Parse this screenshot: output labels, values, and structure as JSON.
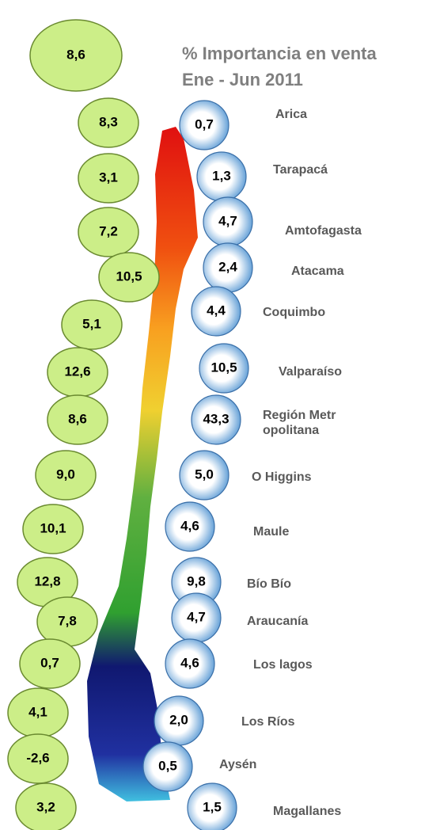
{
  "title": "% Importancia en venta",
  "subtitle": "Ene - Jun 2011",
  "total": "8,6",
  "regions": [
    {
      "name": "Arica",
      "growth": "8,3",
      "share": "0,7"
    },
    {
      "name": "Tarapacá",
      "growth": "3,1",
      "share": "1,3"
    },
    {
      "name": "Amtofagasta",
      "growth": "7,2",
      "share": "4,7"
    },
    {
      "name": "Atacama",
      "growth": "10,5",
      "share": "2,4"
    },
    {
      "name": "Coquimbo",
      "growth": "5,1",
      "share": "4,4"
    },
    {
      "name": "Valparaíso",
      "growth": "12,6",
      "share": "10,5"
    },
    {
      "name": "Región Metropolitana",
      "growth": "8,6",
      "share": "43,3"
    },
    {
      "name": "O Higgins",
      "growth": "9,0",
      "share": "5,0"
    },
    {
      "name": "Maule",
      "growth": "10,1",
      "share": "4,6"
    },
    {
      "name": "Bío Bío",
      "growth": "12,8",
      "share": "9,8"
    },
    {
      "name": "Araucanía",
      "growth": "7,8",
      "share": "4,7"
    },
    {
      "name": "Los lagos",
      "growth": "0,7",
      "share": "4,6"
    },
    {
      "name": "Los Ríos",
      "growth": "4,1",
      "share": "2,0"
    },
    {
      "name": "Aysén",
      "growth": "-2,6",
      "share": "0,5"
    },
    {
      "name": "Magallanes",
      "growth": "3,2",
      "share": "1,5"
    }
  ]
}
